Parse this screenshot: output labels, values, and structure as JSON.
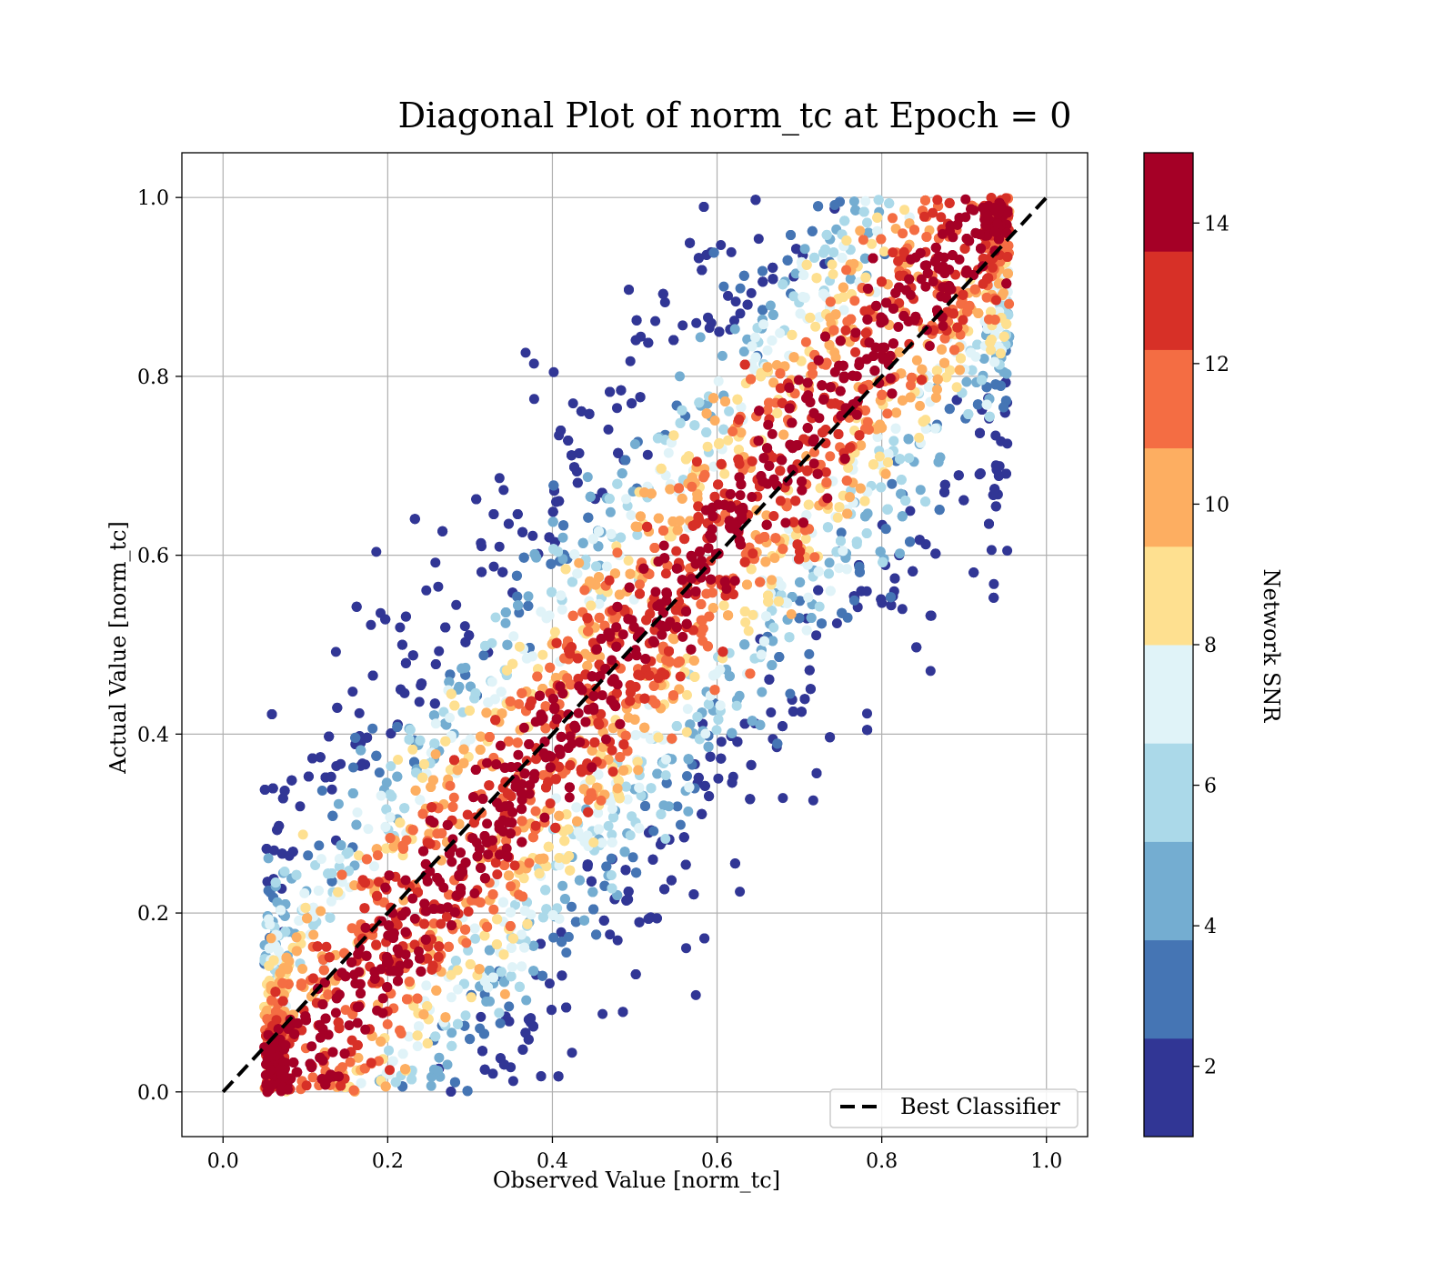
{
  "chart_data": {
    "type": "scatter",
    "title": "Diagonal Plot of norm_tc at Epoch = 0",
    "xlabel": "Observed Value [norm_tc]",
    "ylabel": "Actual Value [norm_tc]",
    "xlim": [
      -0.05,
      1.05
    ],
    "ylim": [
      -0.05,
      1.05
    ],
    "xticks": [
      "0.0",
      "0.2",
      "0.4",
      "0.6",
      "0.8",
      "1.0"
    ],
    "yticks": [
      "0.0",
      "0.2",
      "0.4",
      "0.6",
      "0.8",
      "1.0"
    ],
    "grid": true,
    "legend": {
      "placement": "lower-right",
      "entries": [
        "Best Classifier"
      ]
    },
    "reference_line": {
      "name": "Best Classifier",
      "x": [
        0,
        1
      ],
      "y": [
        0,
        1
      ],
      "style": "dashed",
      "color": "#000000"
    },
    "colorbar": {
      "label": "Network SNR",
      "range": [
        1,
        15
      ],
      "ticks": [
        "2",
        "4",
        "6",
        "8",
        "10",
        "12",
        "14"
      ],
      "levels": 10,
      "colors": [
        "#313695",
        "#4575b4",
        "#74add1",
        "#abd9e9",
        "#e0f3f8",
        "#fee090",
        "#fdae61",
        "#f46d43",
        "#d73027",
        "#a50026"
      ]
    },
    "point_cloud": {
      "description_of_distribution": "parallelogram band: x between 0.75*y+0.06 and 0.75*y+0.3... high SNR near diagonal",
      "n_points": 9000
    },
    "series": [
      {
        "x": [
          0.12,
          0.18,
          0.22,
          0.25,
          0.3,
          0.35,
          0.4,
          0.45,
          0.5,
          0.55,
          0.6,
          0.65,
          0.7,
          0.75,
          0.8,
          0.85,
          0.9
        ],
        "y": [
          0.05,
          0.12,
          0.2,
          0.25,
          0.3,
          0.35,
          0.4,
          0.45,
          0.5,
          0.55,
          0.6,
          0.65,
          0.7,
          0.75,
          0.8,
          0.85,
          0.92
        ]
      }
    ]
  }
}
